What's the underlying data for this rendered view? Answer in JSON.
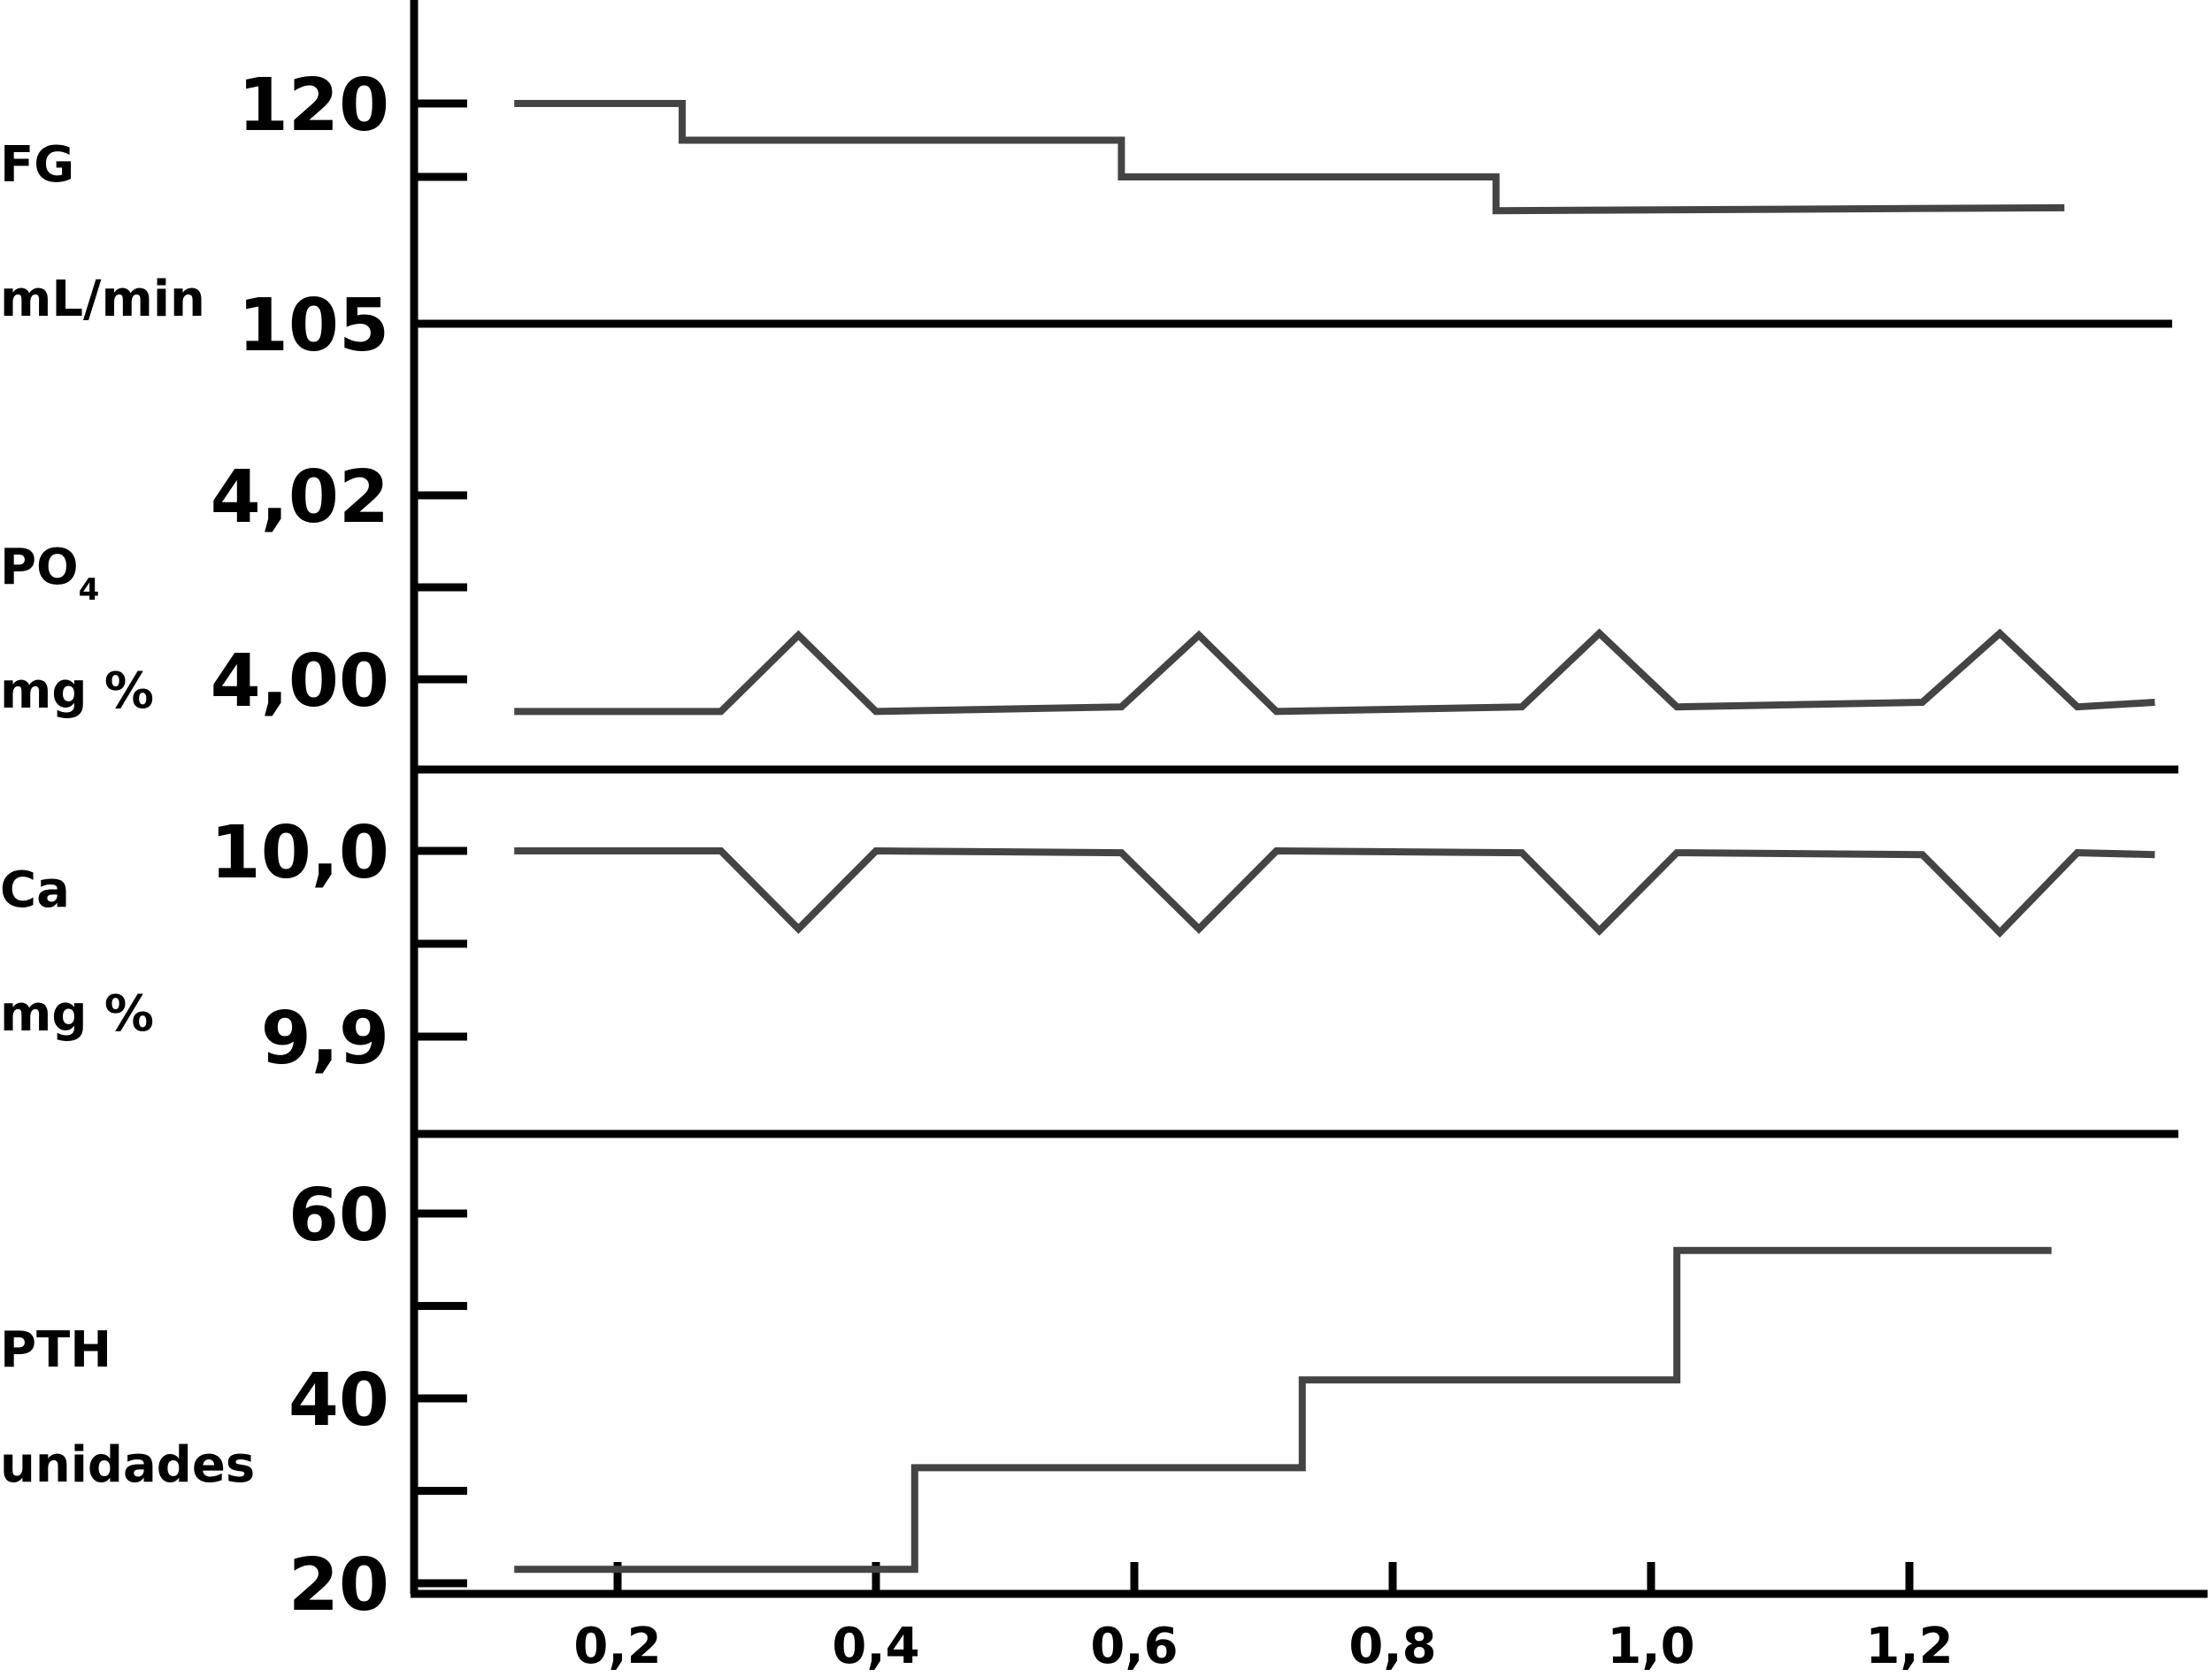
{
  "chart_data": {
    "type": "line",
    "style": "stepped / multi-panel",
    "colors": {
      "series": "#444444",
      "axes": "#000000"
    },
    "x_axis": {
      "tick_labels": [
        "0,2",
        "0,4",
        "0,6",
        "0,8",
        "1,0",
        "1,2"
      ],
      "tick_values": [
        0.2,
        0.4,
        0.6,
        0.8,
        1.0,
        1.2
      ],
      "range": [
        0.07,
        1.43
      ]
    },
    "panels": [
      {
        "id": "fg",
        "ylabel_lines": [
          "FG",
          "mL/min"
        ],
        "y_tick_labels": [
          {
            "text": "120",
            "value": 120
          },
          {
            "text": "105",
            "value": 105
          }
        ],
        "y_minor_ticks": [
          115
        ],
        "y_range": [
          105,
          125
        ],
        "series": {
          "points": [
            [
              0.12,
              120
            ],
            [
              0.25,
              120
            ],
            [
              0.25,
              117.5
            ],
            [
              0.59,
              117.5
            ],
            [
              0.59,
              115
            ],
            [
              0.88,
              115
            ],
            [
              0.88,
              112.7
            ],
            [
              1.32,
              112.9
            ]
          ]
        }
      },
      {
        "id": "po4",
        "ylabel_lines": [
          "PO",
          "mg %"
        ],
        "ylabel_subscript": "4",
        "y_tick_labels": [
          {
            "text": "4,02",
            "value": 4.02
          },
          {
            "text": "4,00",
            "value": 4.0
          }
        ],
        "y_minor_ticks": [
          4.01
        ],
        "y_range": [
          3.99,
          4.03
        ],
        "series": {
          "points": [
            [
              0.12,
              3.9965
            ],
            [
              0.28,
              3.9965
            ],
            [
              0.34,
              4.0048
            ],
            [
              0.4,
              3.9965
            ],
            [
              0.59,
              3.997
            ],
            [
              0.65,
              4.0048
            ],
            [
              0.71,
              3.9965
            ],
            [
              0.9,
              3.997
            ],
            [
              0.96,
              4.005
            ],
            [
              1.02,
              3.997
            ],
            [
              1.21,
              3.9975
            ],
            [
              1.27,
              4.005
            ],
            [
              1.33,
              3.997
            ],
            [
              1.39,
              3.9975
            ]
          ]
        }
      },
      {
        "id": "ca",
        "ylabel_lines": [
          "Ca",
          "mg %"
        ],
        "y_tick_labels": [
          {
            "text": "10,0",
            "value": 10.0
          },
          {
            "text": "9,9",
            "value": 9.9
          }
        ],
        "y_minor_ticks": [
          9.95
        ],
        "y_range": [
          9.85,
          10.05
        ],
        "series": {
          "points": [
            [
              0.12,
              10.0
            ],
            [
              0.28,
              10.0
            ],
            [
              0.34,
              9.958
            ],
            [
              0.4,
              10.0
            ],
            [
              0.59,
              9.999
            ],
            [
              0.65,
              9.958
            ],
            [
              0.71,
              10.0
            ],
            [
              0.9,
              9.999
            ],
            [
              0.96,
              9.957
            ],
            [
              1.02,
              9.999
            ],
            [
              1.21,
              9.998
            ],
            [
              1.27,
              9.956
            ],
            [
              1.33,
              9.999
            ],
            [
              1.39,
              9.998
            ]
          ]
        }
      },
      {
        "id": "pth",
        "ylabel_lines": [
          "PTH",
          "unidades"
        ],
        "y_tick_labels": [
          {
            "text": "60",
            "value": 60
          },
          {
            "text": "40",
            "value": 40
          },
          {
            "text": "20",
            "value": 20
          }
        ],
        "y_minor_ticks": [
          50,
          30
        ],
        "y_range": [
          17,
          68
        ],
        "series": {
          "points": [
            [
              0.12,
              21.5
            ],
            [
              0.43,
              21.5
            ],
            [
              0.43,
              32.5
            ],
            [
              0.73,
              32.5
            ],
            [
              0.73,
              42
            ],
            [
              1.02,
              42
            ],
            [
              1.02,
              56
            ],
            [
              1.31,
              56
            ]
          ]
        }
      }
    ]
  }
}
